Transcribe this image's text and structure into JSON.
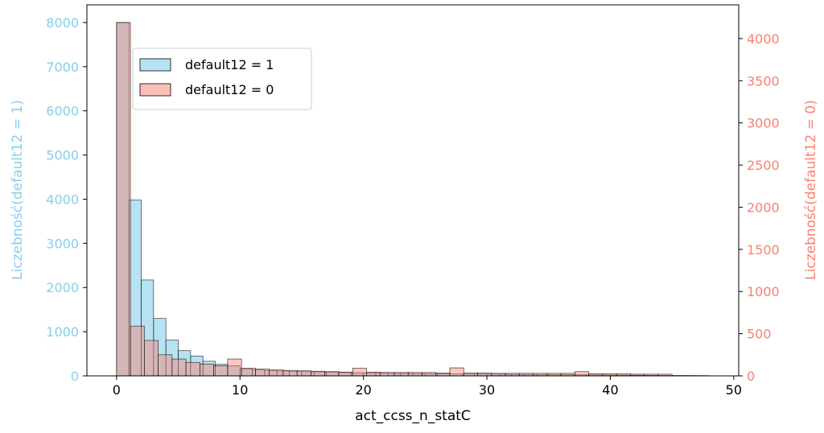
{
  "chart_data": {
    "type": "histogram",
    "xlabel": "act_ccss_n_statC",
    "ylabel_left": "Liczebność(default12 = 1)",
    "ylabel_right": "Liczebność(default12 = 0)",
    "xlim": [
      -2.4,
      50.4
    ],
    "ylim_left": [
      0,
      8400
    ],
    "ylim_right": [
      0,
      4400
    ],
    "xticks": [
      0,
      10,
      20,
      30,
      40,
      50
    ],
    "yticks_left": [
      0,
      1000,
      2000,
      3000,
      4000,
      5000,
      6000,
      7000,
      8000
    ],
    "yticks_right": [
      0,
      500,
      1000,
      1500,
      2000,
      2500,
      3000,
      3500,
      4000
    ],
    "grid": false,
    "legend_position": "upper-left",
    "series": [
      {
        "name": "default12 = 1",
        "axis": "left",
        "color": "#87ceeb",
        "bin_start": 0,
        "bin_width": 1.0,
        "values": [
          8000,
          3980,
          2170,
          1300,
          810,
          570,
          450,
          330,
          260,
          230,
          160,
          140,
          120,
          110,
          100,
          95,
          90,
          80,
          75,
          70,
          65,
          60,
          55,
          55,
          50,
          50,
          45,
          45,
          40,
          40,
          38,
          36,
          34,
          32,
          30,
          28,
          26,
          24,
          22,
          20,
          18,
          16,
          14,
          12,
          10,
          9,
          8,
          6
        ]
      },
      {
        "name": "default12 = 0",
        "axis": "right",
        "color": "#fa8072",
        "bin_start": 0,
        "bin_width": 1.125,
        "values": [
          4190,
          590,
          420,
          250,
          200,
          160,
          140,
          120,
          200,
          90,
          80,
          70,
          65,
          60,
          55,
          50,
          45,
          90,
          45,
          40,
          40,
          40,
          40,
          35,
          95,
          35,
          35,
          30,
          30,
          30,
          30,
          30,
          30,
          50,
          25,
          25,
          25,
          20,
          20,
          20
        ]
      }
    ]
  }
}
